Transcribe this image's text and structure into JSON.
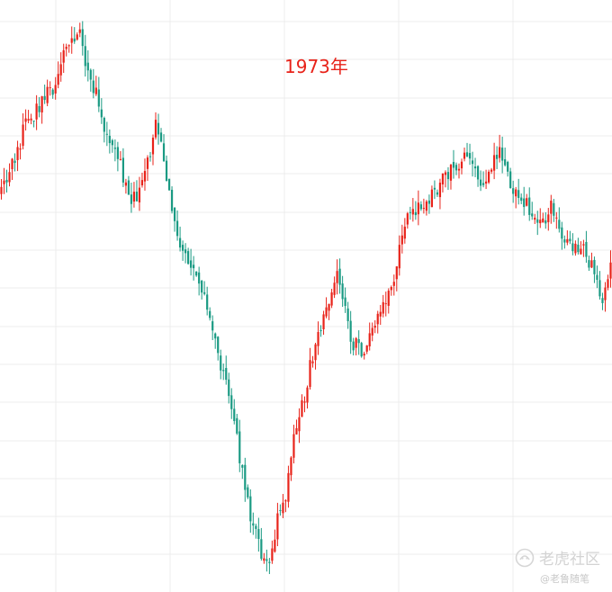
{
  "chart_data": {
    "type": "candlestick",
    "title": "1973年",
    "xlabel": "",
    "ylabel": "",
    "grid": true,
    "legend": "none",
    "colors": {
      "up": "#e8231a",
      "down": "#1a9a83",
      "grid": "#ececec"
    },
    "ylim": [
      0,
      100
    ],
    "trend": [
      [
        0,
        68
      ],
      [
        3,
        72
      ],
      [
        6,
        76
      ],
      [
        9,
        80
      ],
      [
        12,
        82
      ],
      [
        15,
        84
      ],
      [
        18,
        86
      ],
      [
        21,
        90
      ],
      [
        24,
        94
      ],
      [
        27,
        96
      ],
      [
        30,
        90
      ],
      [
        33,
        85
      ],
      [
        36,
        80
      ],
      [
        39,
        76
      ],
      [
        42,
        72
      ],
      [
        45,
        65
      ],
      [
        48,
        68
      ],
      [
        51,
        73
      ],
      [
        54,
        80
      ],
      [
        57,
        74
      ],
      [
        60,
        62
      ],
      [
        63,
        58
      ],
      [
        66,
        55
      ],
      [
        69,
        52
      ],
      [
        72,
        48
      ],
      [
        75,
        42
      ],
      [
        78,
        35
      ],
      [
        81,
        28
      ],
      [
        84,
        20
      ],
      [
        87,
        12
      ],
      [
        90,
        6
      ],
      [
        93,
        3
      ],
      [
        96,
        10
      ],
      [
        99,
        14
      ],
      [
        102,
        25
      ],
      [
        105,
        30
      ],
      [
        108,
        38
      ],
      [
        111,
        43
      ],
      [
        114,
        48
      ],
      [
        117,
        55
      ],
      [
        120,
        47
      ],
      [
        123,
        42
      ],
      [
        126,
        39
      ],
      [
        129,
        45
      ],
      [
        132,
        47
      ],
      [
        135,
        50
      ],
      [
        138,
        55
      ],
      [
        141,
        62
      ],
      [
        144,
        65
      ],
      [
        147,
        66
      ],
      [
        150,
        67
      ],
      [
        153,
        69
      ],
      [
        156,
        71
      ],
      [
        159,
        72
      ],
      [
        162,
        74
      ],
      [
        165,
        71
      ],
      [
        168,
        68
      ],
      [
        171,
        72
      ],
      [
        174,
        75
      ],
      [
        177,
        71
      ],
      [
        180,
        68
      ],
      [
        183,
        66
      ],
      [
        186,
        64
      ],
      [
        189,
        63
      ],
      [
        192,
        65
      ],
      [
        195,
        62
      ],
      [
        198,
        60
      ],
      [
        201,
        58
      ],
      [
        204,
        57
      ],
      [
        207,
        54
      ],
      [
        210,
        50
      ],
      [
        213,
        55
      ]
    ]
  },
  "watermark": {
    "brand": "老虎社区",
    "author": "@老鲁随笔",
    "logo_icon": "tiger-logo-icon"
  }
}
